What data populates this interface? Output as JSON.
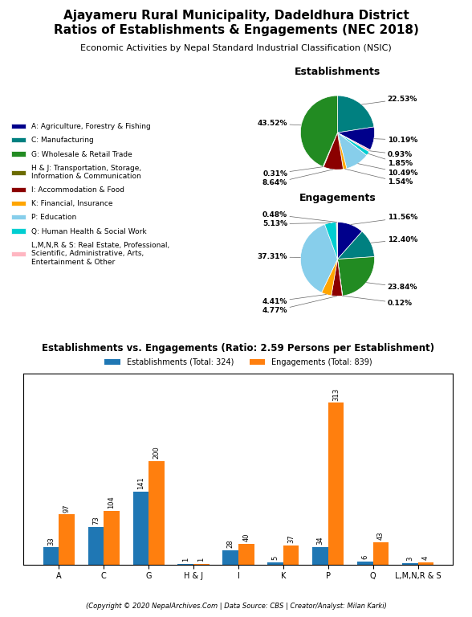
{
  "title": "Ajayameru Rural Municipality, Dadeldhura District\nRatios of Establishments & Engagements (NEC 2018)",
  "subtitle": "Economic Activities by Nepal Standard Industrial Classification (NSIC)",
  "annotations": [
    "(Copyright © 2020 NepalArchives.Com | Data Source: CBS | Creator/Analyst: Milan Karki)"
  ],
  "chart_data": [
    {
      "type": "pie",
      "title": "Establishments",
      "categories": [
        "C: Manufacturing",
        "A: Agriculture, Forestry & Fishing",
        "L,M,N,R & S: Real Estate, Professional,\nScientific, Administrative, Arts,\nEntertainment & Other",
        "Q: Human Health & Social Work",
        "P: Education",
        "K: Financial, Insurance",
        "I: Accommodation & Food",
        "H & J: Transportation, Storage,\nInformation & Communication",
        "G: Wholesale & Retail Trade"
      ],
      "values": [
        22.53,
        10.19,
        0.93,
        1.85,
        10.49,
        1.54,
        8.64,
        0.31,
        43.52
      ],
      "value_labels": [
        "22.53%",
        "10.19%",
        "0.93%",
        "1.85%",
        "10.49%",
        "1.54%",
        "8.64%",
        "0.31%",
        "43.52%"
      ],
      "colors": [
        "#008080",
        "#00008B",
        "#FFB6C1",
        "#00CED1",
        "#87CEEB",
        "#FFA500",
        "#8B0000",
        "#6B6B00",
        "#228B22"
      ]
    },
    {
      "type": "pie",
      "title": "Engagements",
      "categories": [
        "A: Agriculture, Forestry & Fishing",
        "C: Manufacturing",
        "G: Wholesale & Retail Trade",
        "H & J: Transportation, Storage,\nInformation & Communication",
        "I: Accommodation & Food",
        "K: Financial, Insurance",
        "P: Education",
        "Q: Human Health & Social Work",
        "L,M,N,R & S: Real Estate, Professional,\nScientific, Administrative, Arts,\nEntertainment & Other"
      ],
      "values": [
        11.56,
        12.4,
        23.84,
        0.12,
        4.77,
        4.41,
        37.31,
        5.13,
        0.48
      ],
      "value_labels": [
        "11.56%",
        "12.40%",
        "23.84%",
        "0.12%",
        "4.77%",
        "4.41%",
        "37.31%",
        "5.13%",
        "0.48%"
      ],
      "colors": [
        "#00008B",
        "#008080",
        "#228B22",
        "#6B6B00",
        "#8B0000",
        "#FFA500",
        "#87CEEB",
        "#00CED1",
        "#FFB6C1"
      ],
      "legend": "center left"
    },
    {
      "type": "bar",
      "title": "Establishments vs. Engagements (Ratio: 2.59 Persons per Establishment)",
      "categories": [
        "A",
        "C",
        "G",
        "H & J",
        "I",
        "K",
        "P",
        "Q",
        "L,M,N,R & S"
      ],
      "series": [
        {
          "name": "Establishments (Total: 324)",
          "values": [
            33,
            73,
            141,
            1,
            28,
            5,
            34,
            6,
            3
          ]
        },
        {
          "name": "Engagements (Total: 839)",
          "values": [
            97,
            104,
            200,
            1,
            40,
            37,
            313,
            43,
            4
          ]
        }
      ],
      "ylim": [
        0,
        370
      ],
      "data_labels": true,
      "tick_labels": "x",
      "legend": "lower center"
    }
  ]
}
